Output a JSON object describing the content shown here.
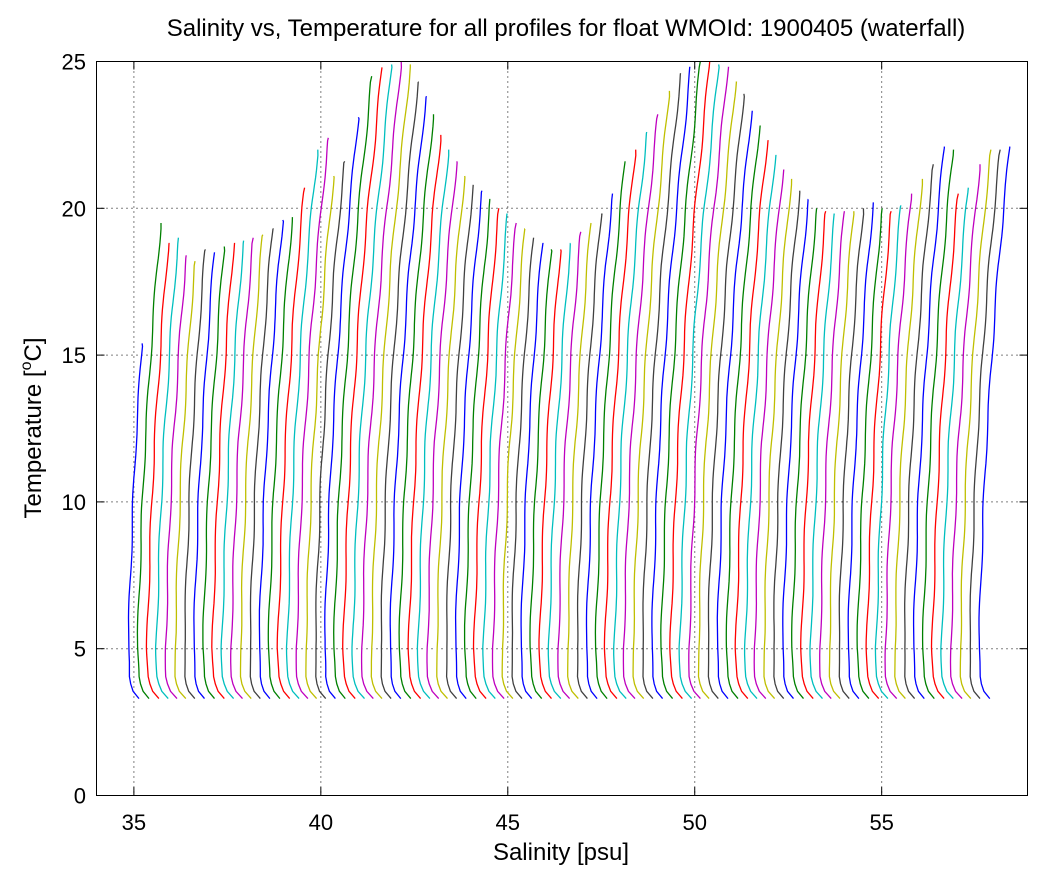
{
  "chart_data": {
    "type": "line",
    "title": "Salinity vs, Temperature for all profiles for float WMOId: 1900405 (waterfall)",
    "xlabel": "Salinity [psu]",
    "ylabel_main": "Temperature [",
    "ylabel_sup": "o",
    "ylabel_tail": "C]",
    "xlim": [
      34.0,
      58.9
    ],
    "ylim": [
      0,
      25
    ],
    "xticks": [
      35,
      40,
      45,
      50,
      55
    ],
    "yticks": [
      0,
      5,
      10,
      15,
      20,
      25
    ],
    "xgrid": true,
    "ygrid": true,
    "waterfall": {
      "profile_count": 92,
      "first_base_salinity": 34.85,
      "offset_per_profile": 0.25,
      "bottom_temperature": 3.3,
      "profile_shape": [
        [
          3.3,
          0.3
        ],
        [
          3.6,
          0.1
        ],
        [
          4.0,
          0.02
        ],
        [
          5.0,
          0.0
        ],
        [
          6.0,
          0.02
        ],
        [
          8.0,
          0.07
        ],
        [
          10.0,
          0.13
        ],
        [
          12.0,
          0.2
        ],
        [
          14.0,
          0.3
        ],
        [
          16.0,
          0.4
        ],
        [
          18.0,
          0.52
        ],
        [
          20.0,
          0.66
        ],
        [
          22.0,
          0.82
        ],
        [
          25.0,
          1.05
        ]
      ],
      "surface_temperatures": [
        15.4,
        19.5,
        18.8,
        19.0,
        18.4,
        18.2,
        18.6,
        18.5,
        18.7,
        18.8,
        18.9,
        19.0,
        19.1,
        19.3,
        19.6,
        19.7,
        20.7,
        22.0,
        22.4,
        21.1,
        21.6,
        23.1,
        24.5,
        24.8,
        24.9,
        25.0,
        24.9,
        24.3,
        23.8,
        23.2,
        22.5,
        22.0,
        21.6,
        21.1,
        20.8,
        20.6,
        20.3,
        20.0,
        19.8,
        19.5,
        19.3,
        19.0,
        18.8,
        18.6,
        18.6,
        18.8,
        19.2,
        19.5,
        19.8,
        20.5,
        21.6,
        22.0,
        22.6,
        23.2,
        24.0,
        24.6,
        24.8,
        25.0,
        25.0,
        24.9,
        24.8,
        24.3,
        23.9,
        23.3,
        22.8,
        22.3,
        21.8,
        21.3,
        21.0,
        20.6,
        20.3,
        20.0,
        19.9,
        19.8,
        19.9,
        19.9,
        20.0,
        20.2,
        20.0,
        19.9,
        20.1,
        20.5,
        21.0,
        21.5,
        22.1,
        22.0,
        20.5,
        20.7,
        21.5,
        22.0,
        22.0,
        22.1
      ],
      "colors": [
        "#0000ff",
        "#008000",
        "#ff0000",
        "#00bfbf",
        "#bf00bf",
        "#bfbf00",
        "#404040"
      ]
    }
  }
}
